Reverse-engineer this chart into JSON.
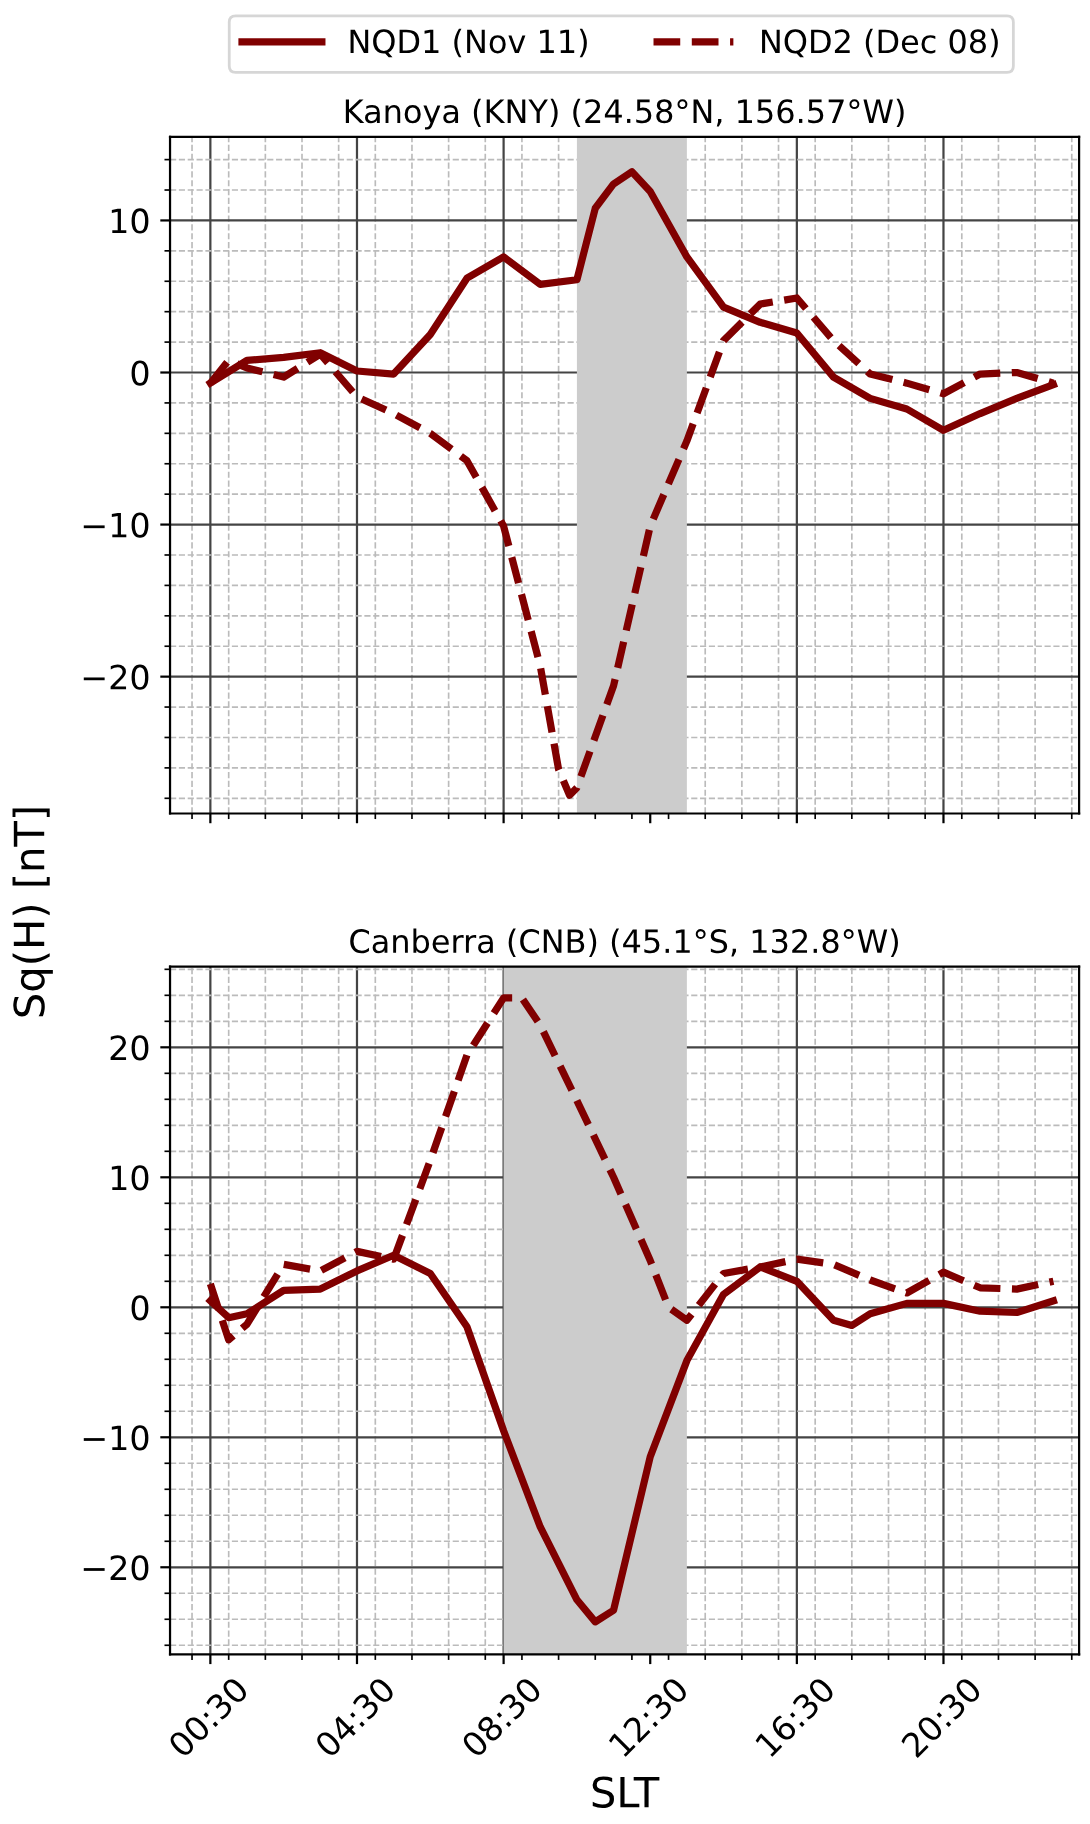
{
  "chart_data": [
    {
      "type": "line",
      "title": "Kanoya (KNY) (24.58°N, 156.57°W)",
      "ylabel": "Sq(H) [nT]",
      "legend": "top",
      "grid": true,
      "marker": "none",
      "tick_labels": "y",
      "xlim": [
        -0.6,
        24.2
      ],
      "ylim": [
        -29,
        15.5
      ],
      "xticks": [
        {
          "value": 0.5,
          "label": null
        },
        {
          "value": 4.5,
          "label": null
        },
        {
          "value": 8.5,
          "label": null
        },
        {
          "value": 12.5,
          "label": null
        },
        {
          "value": 16.5,
          "label": null
        },
        {
          "value": 20.5,
          "label": null
        }
      ],
      "yticks": [
        -20,
        -10,
        0,
        10
      ],
      "bands": [
        {
          "axis": "x",
          "from": 10.5,
          "to": 13.5,
          "color": "#cccccc"
        }
      ],
      "series": [
        {
          "name": "NQD1 (Nov 11)",
          "color": "#800000",
          "line_style": "solid",
          "x": [
            0.5,
            1.5,
            2.5,
            3.5,
            4.5,
            5.5,
            6.5,
            7.5,
            8.5,
            9.5,
            10.5,
            11,
            11.5,
            12,
            12.5,
            13.5,
            14.5,
            15.5,
            16.5,
            17.5,
            18.5,
            19.5,
            20.5,
            21.5,
            22.5,
            23.5
          ],
          "values": [
            -0.7,
            0.8,
            1.0,
            1.3,
            0.1,
            -0.1,
            2.5,
            6.2,
            7.6,
            5.8,
            6.1,
            10.8,
            12.4,
            13.2,
            11.9,
            7.6,
            4.3,
            3.3,
            2.6,
            -0.3,
            -1.7,
            -2.4,
            -3.8,
            -2.7,
            -1.7,
            -0.8
          ]
        },
        {
          "name": "NQD2 (Dec 08)",
          "color": "#800000",
          "line_style": "dashed",
          "x": [
            0.5,
            1.0,
            1.5,
            2.5,
            3.5,
            4.5,
            5.5,
            6.5,
            7.5,
            8.5,
            9.5,
            10.0,
            10.3,
            10.5,
            11.5,
            12.5,
            13.5,
            14.5,
            15.5,
            16.5,
            17.5,
            18.5,
            19.5,
            20.5,
            21.5,
            22.5,
            23.5
          ],
          "values": [
            -0.7,
            0.8,
            0.3,
            -0.3,
            1.2,
            -1.6,
            -2.7,
            -4.0,
            -5.8,
            -10.1,
            -19.3,
            -26.1,
            -27.8,
            -27.3,
            -20.6,
            -10.1,
            -4.5,
            2.1,
            4.5,
            4.9,
            2.1,
            -0.1,
            -0.7,
            -1.4,
            -0.1,
            0.0,
            -0.7
          ]
        }
      ]
    },
    {
      "type": "line",
      "title": "Canberra (CNB) (45.1°S, 132.8°W)",
      "xlabel": "SLT",
      "grid": true,
      "marker": "none",
      "xlim": [
        -0.6,
        24.2
      ],
      "ylim": [
        -26.7,
        26.2
      ],
      "xticks": [
        {
          "value": 0.5,
          "label": "00:30"
        },
        {
          "value": 4.5,
          "label": "04:30"
        },
        {
          "value": 8.5,
          "label": "08:30"
        },
        {
          "value": 12.5,
          "label": "12:30"
        },
        {
          "value": 16.5,
          "label": "16:30"
        },
        {
          "value": 20.5,
          "label": "20:30"
        }
      ],
      "yticks": [
        -20,
        -10,
        0,
        10,
        20
      ],
      "bands": [
        {
          "axis": "x",
          "from": 8.5,
          "to": 13.5,
          "color": "#cccccc"
        }
      ],
      "series": [
        {
          "color": "#800000",
          "line_style": "solid",
          "x": [
            0.5,
            1.0,
            1.5,
            2.5,
            3.5,
            4.5,
            5.5,
            6.5,
            7.5,
            8.5,
            9.5,
            10.5,
            11.0,
            11.5,
            12.5,
            13.5,
            14.5,
            15.5,
            16.5,
            17.5,
            18.0,
            18.5,
            19.5,
            20.5,
            21.5,
            22.5,
            23.5
          ],
          "values": [
            0.5,
            -0.8,
            -0.5,
            1.3,
            1.4,
            2.8,
            4.0,
            2.6,
            -1.5,
            -9.5,
            -16.9,
            -22.5,
            -24.2,
            -23.3,
            -11.5,
            -4.1,
            1.0,
            3.1,
            2.0,
            -1.0,
            -1.4,
            -0.5,
            0.3,
            0.3,
            -0.3,
            -0.4,
            0.5
          ]
        },
        {
          "color": "#800000",
          "line_style": "dashed",
          "x": [
            0.5,
            1.0,
            1.5,
            2.5,
            3.5,
            4.5,
            5.5,
            6.5,
            7.5,
            8.5,
            9.0,
            9.5,
            10.5,
            11.5,
            12.5,
            13.0,
            13.5,
            14.5,
            15.5,
            16.5,
            17.5,
            18.5,
            19.5,
            20.5,
            21.5,
            22.5,
            23.5
          ],
          "values": [
            1.8,
            -2.5,
            -1.3,
            3.3,
            2.8,
            4.3,
            3.7,
            11.3,
            19.4,
            23.8,
            23.8,
            21.7,
            15.9,
            10.0,
            3.6,
            0.0,
            -1.0,
            2.6,
            3.1,
            3.7,
            3.3,
            2.1,
            1.1,
            2.7,
            1.5,
            1.4,
            2.0
          ]
        }
      ]
    }
  ]
}
